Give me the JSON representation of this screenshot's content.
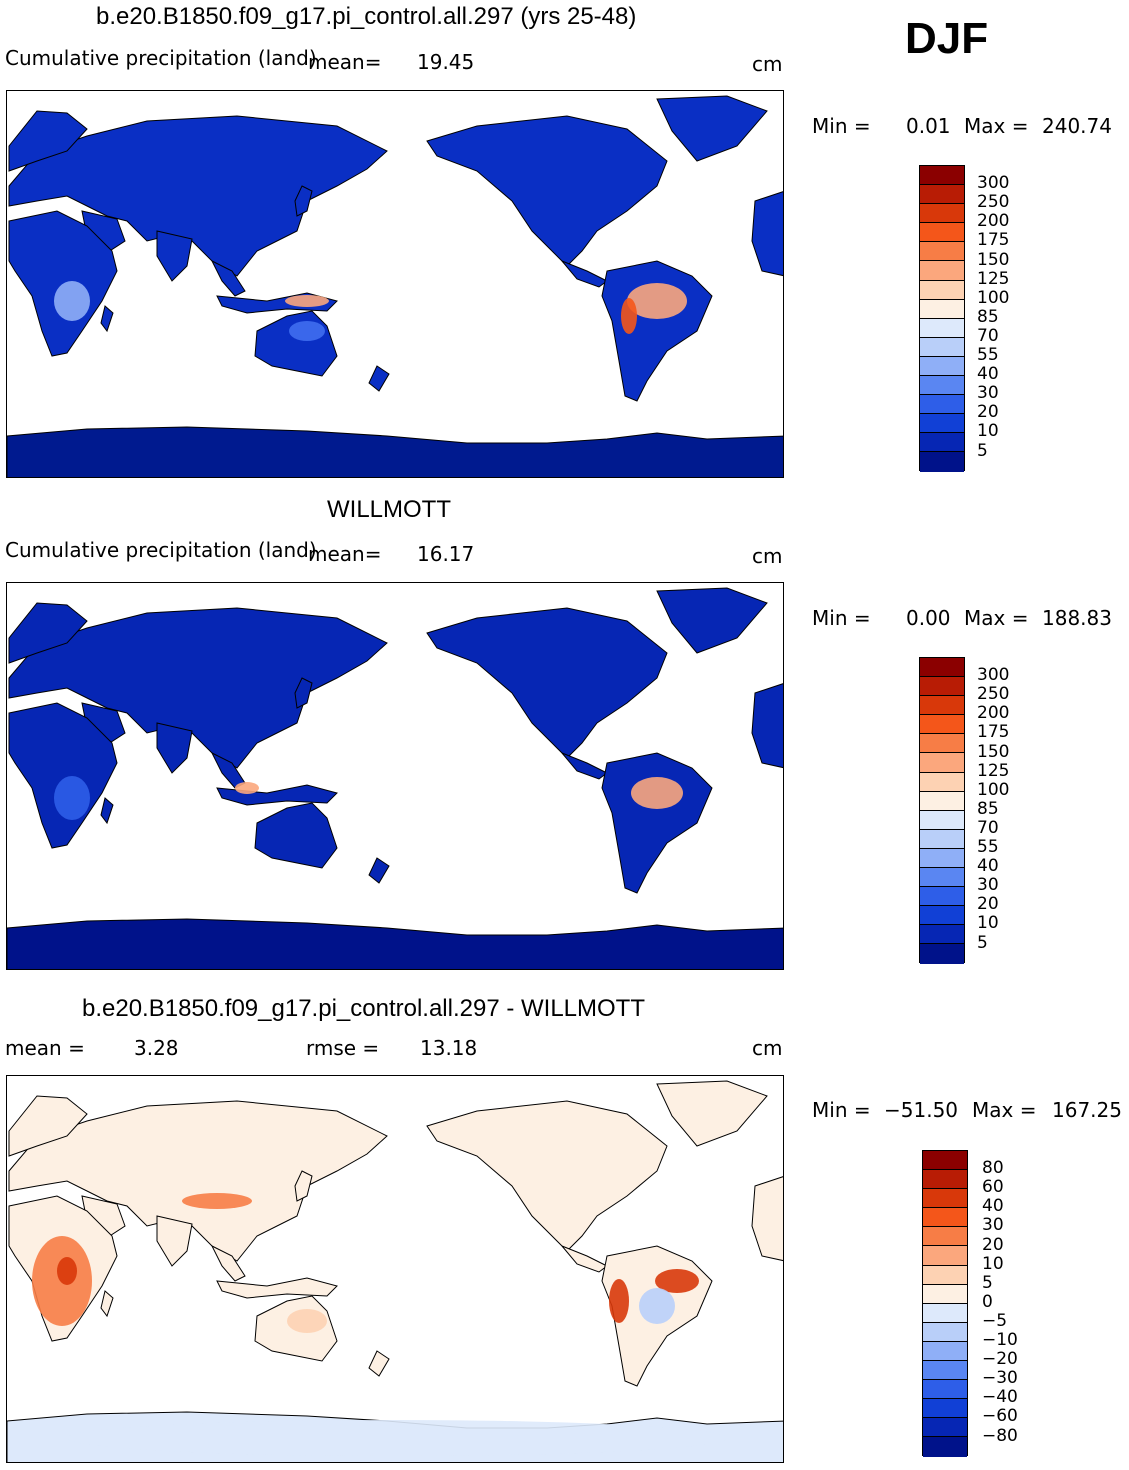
{
  "season": "DJF",
  "panels": [
    {
      "title": "b.e20.B1850.f09_g17.pi_control.all.297 (yrs 25-48)",
      "left_label": "Cumulative precipitation  (land)",
      "mean_label": "mean=",
      "mean_value": "19.45",
      "units": "cm",
      "min_label": "Min  =",
      "min_value": "0.01",
      "max_label": "Max  =",
      "max_value": "240.74",
      "colorbar": {
        "ticks": [
          "300",
          "250",
          "200",
          "175",
          "150",
          "125",
          "100",
          "85",
          "70",
          "55",
          "40",
          "30",
          "20",
          "10",
          "5"
        ],
        "colors": [
          "#8b0000",
          "#b81c05",
          "#d8380a",
          "#f4561a",
          "#f77d46",
          "#fba77d",
          "#fdd2b3",
          "#fdf0e3",
          "#dde9fb",
          "#b9cff9",
          "#8faff7",
          "#5a86f2",
          "#2e5ee8",
          "#1140d6",
          "#0626b4",
          "#00128a"
        ]
      }
    },
    {
      "title": "WILLMOTT",
      "left_label": "Cumulative precipitation  (land)",
      "mean_label": "mean=",
      "mean_value": "16.17",
      "units": "cm",
      "min_label": "Min  =",
      "min_value": "0.00",
      "max_label": "Max  =",
      "max_value": "188.83",
      "colorbar": {
        "ticks": [
          "300",
          "250",
          "200",
          "175",
          "150",
          "125",
          "100",
          "85",
          "70",
          "55",
          "40",
          "30",
          "20",
          "10",
          "5"
        ],
        "colors": [
          "#8b0000",
          "#b81c05",
          "#d8380a",
          "#f4561a",
          "#f77d46",
          "#fba77d",
          "#fdd2b3",
          "#fdf0e3",
          "#dde9fb",
          "#b9cff9",
          "#8faff7",
          "#5a86f2",
          "#2e5ee8",
          "#1140d6",
          "#0626b4",
          "#00128a"
        ]
      }
    },
    {
      "title": "b.e20.B1850.f09_g17.pi_control.all.297 - WILLMOTT",
      "mean_label": "mean  =",
      "mean_value": "3.28",
      "rmse_label": "rmse  =",
      "rmse_value": "13.18",
      "units": "cm",
      "min_label": "Min  =",
      "min_value": "−51.50",
      "max_label": "Max  =",
      "max_value": "167.25",
      "colorbar": {
        "ticks": [
          "80",
          "60",
          "40",
          "30",
          "20",
          "10",
          "5",
          "0",
          "−5",
          "−10",
          "−20",
          "−30",
          "−40",
          "−60",
          "−80"
        ],
        "colors": [
          "#8b0000",
          "#b81c05",
          "#d8380a",
          "#f4561a",
          "#f77d46",
          "#fba77d",
          "#fdd2b3",
          "#fdf0e3",
          "#dde9fb",
          "#b9cff9",
          "#8faff7",
          "#5a86f2",
          "#2e5ee8",
          "#1140d6",
          "#0626b4",
          "#00128a"
        ]
      }
    }
  ],
  "map_palette": {
    "panel1": {
      "land": "#0a2fc4",
      "land_dark": "#001a8f",
      "land_light": "#3f6ef0",
      "wet": "#fba77d",
      "wetter": "#f4561a",
      "mid": "#8faff7"
    },
    "panel2": {
      "land": "#0626b4",
      "land_dark": "#00128a",
      "land_light": "#2e5ee8",
      "wet": "#fba77d",
      "wetter": "#f77d46",
      "mid": "#8faff7"
    },
    "panel3": {
      "land": "#fdf0e3",
      "land_dark": "#dde9fb",
      "land_light": "#fdd2b3",
      "wet": "#f77d46",
      "wetter": "#d8380a",
      "mid": "#b9cff9"
    }
  }
}
